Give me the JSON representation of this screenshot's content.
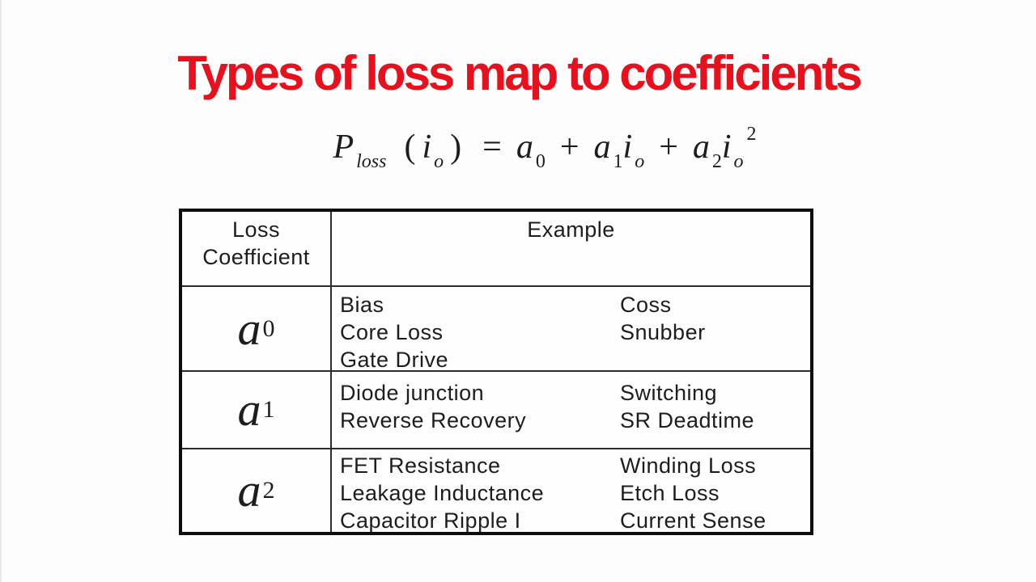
{
  "slide": {
    "background": "#fdfdfd",
    "accent_red": "#e8101c",
    "text_color": "#1d1d1d"
  },
  "title": {
    "text": "Types of loss map to coefficients"
  },
  "formula": {
    "P": "P",
    "P_sub": "loss",
    "lparen": "(",
    "i": "i",
    "i_sub": "o",
    "rparen": ")",
    "equals": "=",
    "a": "a",
    "a0_sub": "0",
    "plus": "+",
    "a1_sub": "1",
    "a2_sub": "2",
    "superscript": "2"
  },
  "table": {
    "header": {
      "coef_line1": "Loss",
      "coef_line2": "Coefficient",
      "example": "Example"
    },
    "rows": [
      {
        "coef": "a",
        "sub": "0",
        "examples_left": [
          "Bias",
          "Core Loss",
          "Gate Drive"
        ],
        "examples_right": [
          "Coss",
          "Snubber"
        ]
      },
      {
        "coef": "a",
        "sub": "1",
        "examples_left": [
          "Diode junction",
          "Reverse Recovery"
        ],
        "examples_right": [
          "Switching",
          "SR Deadtime"
        ]
      },
      {
        "coef": "a",
        "sub": "2",
        "examples_left": [
          "FET Resistance",
          "Leakage Inductance",
          "Capacitor Ripple I"
        ],
        "examples_right": [
          "Winding Loss",
          "Etch Loss",
          "Current Sense"
        ]
      }
    ]
  }
}
